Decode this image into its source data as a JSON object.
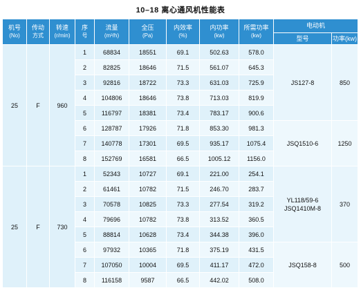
{
  "title": "10–18 离心通风机性能表",
  "headers": {
    "machine_no": "机号",
    "machine_no_unit": "(No)",
    "drive": "传动",
    "drive2": "方式",
    "speed": "转速",
    "speed_unit": "(r/min)",
    "seq": "序",
    "seq2": "号",
    "flow": "流量",
    "flow_unit": "(m³/h)",
    "pressure": "全压",
    "pressure_unit": "(Pa)",
    "efficiency": "内效率",
    "efficiency_unit": "(%)",
    "inner_power": "内功率",
    "inner_power_unit": "(kw)",
    "req_power": "所需功率",
    "req_power_unit": "(kw)",
    "motor": "电动机",
    "model": "型号",
    "power": "功率(kw)"
  },
  "groups": [
    {
      "machine_no": "25",
      "drive": "F",
      "speed": "960",
      "rows": [
        {
          "seq": "1",
          "flow": "68834",
          "pressure": "18551",
          "eff": "69.1",
          "inner": "502.63",
          "req": "578.0"
        },
        {
          "seq": "2",
          "flow": "82825",
          "pressure": "18646",
          "eff": "71.5",
          "inner": "561.07",
          "req": "645.3"
        },
        {
          "seq": "3",
          "flow": "92816",
          "pressure": "18722",
          "eff": "73.3",
          "inner": "631.03",
          "req": "725.9"
        },
        {
          "seq": "4",
          "flow": "104806",
          "pressure": "18646",
          "eff": "73.8",
          "inner": "713.03",
          "req": "819.9"
        },
        {
          "seq": "5",
          "flow": "116797",
          "pressure": "18381",
          "eff": "73.4",
          "inner": "783.17",
          "req": "900.6"
        },
        {
          "seq": "6",
          "flow": "128787",
          "pressure": "17926",
          "eff": "71.8",
          "inner": "853.30",
          "req": "981.3"
        },
        {
          "seq": "7",
          "flow": "140778",
          "pressure": "17301",
          "eff": "69.5",
          "inner": "935.17",
          "req": "1075.4"
        },
        {
          "seq": "8",
          "flow": "152769",
          "pressure": "16581",
          "eff": "66.5",
          "inner": "1005.12",
          "req": "1156.0"
        }
      ],
      "motors": [
        {
          "model": "JS127-8",
          "model2": "",
          "power": "850"
        },
        {
          "model": "JSQ1510-6",
          "model2": "",
          "power": "1250"
        }
      ]
    },
    {
      "machine_no": "25",
      "drive": "F",
      "speed": "730",
      "rows": [
        {
          "seq": "1",
          "flow": "52343",
          "pressure": "10727",
          "eff": "69.1",
          "inner": "221.00",
          "req": "254.1"
        },
        {
          "seq": "2",
          "flow": "61461",
          "pressure": "10782",
          "eff": "71.5",
          "inner": "246.70",
          "req": "283.7"
        },
        {
          "seq": "3",
          "flow": "70578",
          "pressure": "10825",
          "eff": "73.3",
          "inner": "277.54",
          "req": "319.2"
        },
        {
          "seq": "4",
          "flow": "79696",
          "pressure": "10782",
          "eff": "73.8",
          "inner": "313.52",
          "req": "360.5"
        },
        {
          "seq": "5",
          "flow": "88814",
          "pressure": "10628",
          "eff": "73.4",
          "inner": "344.38",
          "req": "396.0"
        },
        {
          "seq": "6",
          "flow": "97932",
          "pressure": "10365",
          "eff": "71.8",
          "inner": "375.19",
          "req": "431.5"
        },
        {
          "seq": "7",
          "flow": "107050",
          "pressure": "10004",
          "eff": "69.5",
          "inner": "411.17",
          "req": "472.0"
        },
        {
          "seq": "8",
          "flow": "116158",
          "pressure": "9587",
          "eff": "66.5",
          "inner": "442.02",
          "req": "508.0"
        }
      ],
      "motors": [
        {
          "model": "YL118/59-6",
          "model2": "JSQ1410M-8",
          "power": "370"
        },
        {
          "model": "JSQ158-8",
          "model2": "",
          "power": "500"
        }
      ]
    }
  ]
}
